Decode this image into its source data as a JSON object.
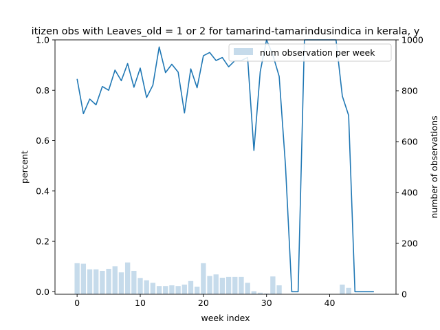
{
  "chart_data": {
    "type": "bar+line",
    "title": "itizen obs with Leaves_old = 1 or 2 for tamarind-tamarindusindica in kerala, y",
    "xlabel": "week index",
    "ylabel_left": "percent",
    "ylabel_right": "number of observations",
    "xlim": [
      -3.5,
      50.5
    ],
    "ylim_left": [
      -0.01,
      1.0
    ],
    "ylim_right": [
      0,
      1000
    ],
    "x_ticks": [
      0,
      10,
      20,
      30,
      40
    ],
    "y_ticks_left": [
      0.0,
      0.2,
      0.4,
      0.6,
      0.8,
      1.0
    ],
    "y_ticks_left_labels": [
      "0.0",
      "0.2",
      "0.4",
      "0.6",
      "0.8",
      "1.0"
    ],
    "y_ticks_right": [
      0,
      200,
      400,
      600,
      800,
      1000
    ],
    "legend": {
      "location": "top-right",
      "entries": [
        "num observation per week"
      ]
    },
    "grid": false,
    "colors": {
      "line": "#1f77b4",
      "bars": "#c6dbeb"
    },
    "line_series": {
      "name": "percent",
      "x": [
        0,
        1,
        2,
        3,
        4,
        5,
        6,
        7,
        8,
        9,
        10,
        11,
        12,
        13,
        14,
        15,
        16,
        17,
        18,
        19,
        20,
        21,
        22,
        23,
        24,
        25,
        26,
        27,
        28,
        29,
        30,
        31,
        32,
        33,
        34,
        35,
        36,
        37,
        38,
        39,
        40,
        41,
        42,
        43,
        44,
        45,
        46,
        47
      ],
      "y": [
        0.845,
        0.707,
        0.765,
        0.742,
        0.815,
        0.8,
        0.88,
        0.838,
        0.906,
        0.812,
        0.888,
        0.771,
        0.82,
        0.972,
        0.87,
        0.903,
        0.872,
        0.71,
        0.885,
        0.81,
        0.937,
        0.95,
        0.918,
        0.93,
        0.893,
        0.918,
        0.918,
        0.93,
        0.561,
        0.874,
        1.0,
        0.94,
        0.855,
        0.5,
        0.0,
        0.0,
        1.0,
        1.0,
        1.0,
        1.0,
        1.0,
        1.0,
        0.777,
        0.7,
        0.0,
        0.0,
        0.0,
        0.0
      ]
    },
    "bar_series": {
      "name": "num observation per week",
      "x": [
        0,
        1,
        2,
        3,
        4,
        5,
        6,
        7,
        8,
        9,
        10,
        11,
        12,
        13,
        14,
        15,
        16,
        17,
        18,
        19,
        20,
        21,
        22,
        23,
        24,
        25,
        26,
        27,
        28,
        29,
        30,
        31,
        32,
        33,
        34,
        35,
        36,
        37,
        38,
        39,
        40,
        41,
        42,
        43,
        44,
        45,
        46,
        47
      ],
      "values": [
        122,
        120,
        98,
        98,
        92,
        100,
        110,
        86,
        125,
        92,
        64,
        55,
        45,
        32,
        32,
        35,
        32,
        38,
        52,
        30,
        122,
        72,
        78,
        65,
        68,
        68,
        68,
        45,
        12,
        6,
        3,
        70,
        35,
        0,
        0,
        0,
        0,
        0,
        0,
        1,
        1,
        0,
        38,
        25,
        0,
        0,
        0,
        0
      ]
    }
  }
}
